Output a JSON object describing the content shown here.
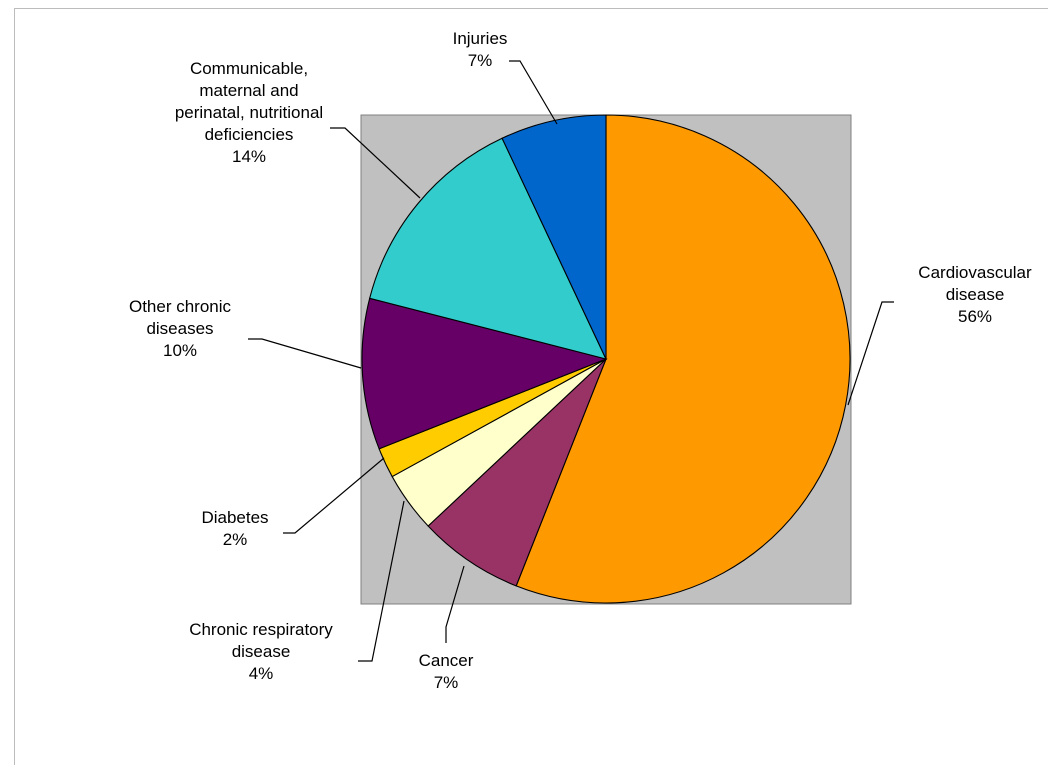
{
  "chart_data": {
    "type": "pie",
    "title": "",
    "start_angle_deg": 0,
    "direction": "clockwise",
    "plot_area_color": "#C0C0C0",
    "slices": [
      {
        "label_lines": [
          "Cardiovascular",
          "disease"
        ],
        "percent_label": "56%",
        "value": 56,
        "color": "#FF9900"
      },
      {
        "label_lines": [
          "Cancer"
        ],
        "percent_label": "7%",
        "value": 7,
        "color": "#993366"
      },
      {
        "label_lines": [
          "Chronic respiratory",
          "disease"
        ],
        "percent_label": "4%",
        "value": 4,
        "color": "#FFFFCC"
      },
      {
        "label_lines": [
          "Diabetes"
        ],
        "percent_label": "2%",
        "value": 2,
        "color": "#FFCC00"
      },
      {
        "label_lines": [
          "Other chronic",
          "diseases"
        ],
        "percent_label": "10%",
        "value": 10,
        "color": "#660066"
      },
      {
        "label_lines": [
          "Communicable,",
          "maternal and",
          "perinatal, nutritional",
          "deficiencies"
        ],
        "percent_label": "14%",
        "value": 14,
        "color": "#33CCCC"
      },
      {
        "label_lines": [
          "Injuries"
        ],
        "percent_label": "7%",
        "value": 7,
        "color": "#0066CC"
      }
    ]
  }
}
